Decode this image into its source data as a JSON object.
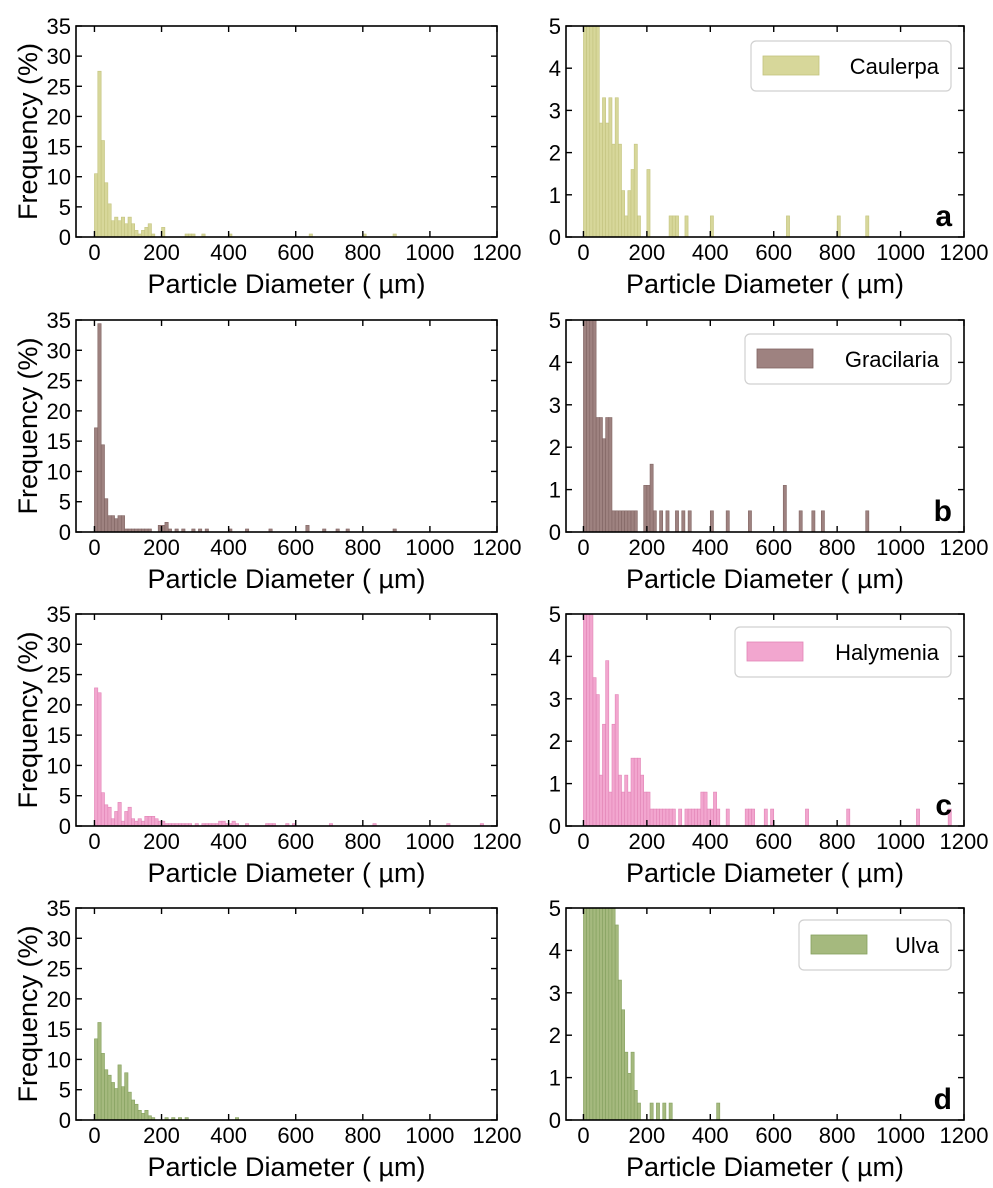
{
  "chart_data": [
    {
      "type": "bar",
      "id": "a-full",
      "row": 0,
      "col": 0,
      "xlabel": "Particle Diameter ( µm)",
      "ylabel": "Frequency (%)",
      "xlim": [
        -55,
        1200
      ],
      "ylim": [
        0,
        35
      ],
      "xticks": [
        0,
        200,
        400,
        600,
        800,
        1000,
        1200
      ],
      "yticks": [
        0,
        5,
        10,
        15,
        20,
        25,
        30,
        35
      ],
      "bin_width": 10,
      "color": "#d7d79a",
      "edge": "#c3c37e",
      "bins": [
        [
          0,
          10.5
        ],
        [
          10,
          27.5
        ],
        [
          20,
          16
        ],
        [
          30,
          9
        ],
        [
          40,
          5.5
        ],
        [
          50,
          2.7
        ],
        [
          60,
          3.3
        ],
        [
          70,
          2.7
        ],
        [
          80,
          3.3
        ],
        [
          90,
          2.2
        ],
        [
          100,
          3.3
        ],
        [
          110,
          2.2
        ],
        [
          120,
          1.1
        ],
        [
          130,
          0.5
        ],
        [
          140,
          1.1
        ],
        [
          150,
          1.6
        ],
        [
          160,
          2.2
        ],
        [
          170,
          0.5
        ],
        [
          200,
          1.6
        ],
        [
          270,
          0.5
        ],
        [
          280,
          0.5
        ],
        [
          290,
          0.5
        ],
        [
          320,
          0.5
        ],
        [
          400,
          0.5
        ],
        [
          640,
          0.5
        ],
        [
          800,
          0.5
        ],
        [
          890,
          0.5
        ]
      ]
    },
    {
      "type": "bar",
      "id": "a-zoom",
      "row": 0,
      "col": 1,
      "xlabel": "Particle Diameter ( µm)",
      "xlim": [
        -55,
        1200
      ],
      "ylim": [
        0,
        5
      ],
      "xticks": [
        0,
        200,
        400,
        600,
        800,
        1000,
        1200
      ],
      "yticks": [
        0,
        1,
        2,
        3,
        4,
        5
      ],
      "bin_width": 10,
      "color": "#d7d79a",
      "edge": "#c3c37e",
      "legend": "Caulerpa",
      "panel_label": "a",
      "bins": [
        [
          0,
          10.5
        ],
        [
          10,
          27.5
        ],
        [
          20,
          16
        ],
        [
          30,
          9
        ],
        [
          40,
          5.5
        ],
        [
          50,
          2.7
        ],
        [
          60,
          3.3
        ],
        [
          70,
          2.7
        ],
        [
          80,
          3.3
        ],
        [
          90,
          2.2
        ],
        [
          100,
          3.3
        ],
        [
          110,
          2.2
        ],
        [
          120,
          1.1
        ],
        [
          130,
          0.5
        ],
        [
          140,
          1.1
        ],
        [
          150,
          1.6
        ],
        [
          160,
          2.2
        ],
        [
          170,
          0.5
        ],
        [
          200,
          1.6
        ],
        [
          270,
          0.5
        ],
        [
          280,
          0.5
        ],
        [
          290,
          0.5
        ],
        [
          320,
          0.5
        ],
        [
          400,
          0.5
        ],
        [
          640,
          0.5
        ],
        [
          800,
          0.5
        ],
        [
          890,
          0.5
        ]
      ]
    },
    {
      "type": "bar",
      "id": "b-full",
      "row": 1,
      "col": 0,
      "xlabel": "Particle Diameter ( µm)",
      "ylabel": "Frequency (%)",
      "xlim": [
        -55,
        1200
      ],
      "ylim": [
        0,
        35
      ],
      "xticks": [
        0,
        200,
        400,
        600,
        800,
        1000,
        1200
      ],
      "yticks": [
        0,
        5,
        10,
        15,
        20,
        25,
        30,
        35
      ],
      "bin_width": 10,
      "color": "#9e8280",
      "edge": "#806462",
      "bins": [
        [
          0,
          17.2
        ],
        [
          10,
          34.4
        ],
        [
          20,
          14.4
        ],
        [
          30,
          5.5
        ],
        [
          40,
          2.7
        ],
        [
          50,
          2.7
        ],
        [
          60,
          2.2
        ],
        [
          70,
          2.7
        ],
        [
          80,
          2.7
        ],
        [
          90,
          0.5
        ],
        [
          100,
          0.5
        ],
        [
          110,
          0.5
        ],
        [
          120,
          0.5
        ],
        [
          130,
          0.5
        ],
        [
          140,
          0.5
        ],
        [
          150,
          0.5
        ],
        [
          160,
          0.5
        ],
        [
          190,
          1.1
        ],
        [
          200,
          1.1
        ],
        [
          210,
          1.6
        ],
        [
          220,
          0.5
        ],
        [
          240,
          0.5
        ],
        [
          260,
          0.5
        ],
        [
          290,
          0.5
        ],
        [
          310,
          0.5
        ],
        [
          330,
          0.5
        ],
        [
          400,
          0.5
        ],
        [
          450,
          0.5
        ],
        [
          520,
          0.5
        ],
        [
          630,
          1.1
        ],
        [
          680,
          0.5
        ],
        [
          720,
          0.5
        ],
        [
          750,
          0.5
        ],
        [
          890,
          0.5
        ]
      ]
    },
    {
      "type": "bar",
      "id": "b-zoom",
      "row": 1,
      "col": 1,
      "xlabel": "Particle Diameter ( µm)",
      "xlim": [
        -55,
        1200
      ],
      "ylim": [
        0,
        5
      ],
      "xticks": [
        0,
        200,
        400,
        600,
        800,
        1000,
        1200
      ],
      "yticks": [
        0,
        1,
        2,
        3,
        4,
        5
      ],
      "bin_width": 10,
      "color": "#9e8280",
      "edge": "#806462",
      "legend": "Gracilaria",
      "panel_label": "b",
      "bins": [
        [
          0,
          17.2
        ],
        [
          10,
          34.4
        ],
        [
          20,
          14.4
        ],
        [
          30,
          5.5
        ],
        [
          40,
          2.7
        ],
        [
          50,
          2.7
        ],
        [
          60,
          2.2
        ],
        [
          70,
          2.7
        ],
        [
          80,
          2.7
        ],
        [
          90,
          0.5
        ],
        [
          100,
          0.5
        ],
        [
          110,
          0.5
        ],
        [
          120,
          0.5
        ],
        [
          130,
          0.5
        ],
        [
          140,
          0.5
        ],
        [
          150,
          0.5
        ],
        [
          160,
          0.5
        ],
        [
          190,
          1.1
        ],
        [
          200,
          1.1
        ],
        [
          210,
          1.6
        ],
        [
          220,
          0.5
        ],
        [
          240,
          0.5
        ],
        [
          260,
          0.5
        ],
        [
          290,
          0.5
        ],
        [
          310,
          0.5
        ],
        [
          330,
          0.5
        ],
        [
          400,
          0.5
        ],
        [
          450,
          0.5
        ],
        [
          520,
          0.5
        ],
        [
          630,
          1.1
        ],
        [
          680,
          0.5
        ],
        [
          720,
          0.5
        ],
        [
          750,
          0.5
        ],
        [
          890,
          0.5
        ]
      ]
    },
    {
      "type": "bar",
      "id": "c-full",
      "row": 2,
      "col": 0,
      "xlabel": "Particle Diameter ( µm)",
      "ylabel": "Frequency (%)",
      "xlim": [
        -55,
        1200
      ],
      "ylim": [
        0,
        35
      ],
      "xticks": [
        0,
        200,
        400,
        600,
        800,
        1000,
        1200
      ],
      "yticks": [
        0,
        5,
        10,
        15,
        20,
        25,
        30,
        35
      ],
      "bin_width": 10,
      "color": "#f2a6cf",
      "edge": "#e284b6",
      "bins": [
        [
          0,
          22.8
        ],
        [
          10,
          22
        ],
        [
          20,
          5.5
        ],
        [
          30,
          3.5
        ],
        [
          40,
          3.1
        ],
        [
          50,
          1.2
        ],
        [
          60,
          2.4
        ],
        [
          70,
          3.9
        ],
        [
          80,
          0.8
        ],
        [
          90,
          2.4
        ],
        [
          100,
          3.1
        ],
        [
          110,
          1.2
        ],
        [
          120,
          0.8
        ],
        [
          130,
          1.2
        ],
        [
          140,
          0.8
        ],
        [
          150,
          1.6
        ],
        [
          160,
          1.6
        ],
        [
          170,
          1.6
        ],
        [
          180,
          1.2
        ],
        [
          190,
          0.8
        ],
        [
          200,
          0.8
        ],
        [
          210,
          0.4
        ],
        [
          220,
          0.4
        ],
        [
          230,
          0.4
        ],
        [
          240,
          0.4
        ],
        [
          250,
          0.4
        ],
        [
          260,
          0.4
        ],
        [
          270,
          0.4
        ],
        [
          280,
          0.4
        ],
        [
          300,
          0.4
        ],
        [
          320,
          0.4
        ],
        [
          330,
          0.4
        ],
        [
          340,
          0.4
        ],
        [
          350,
          0.4
        ],
        [
          360,
          0.4
        ],
        [
          370,
          0.8
        ],
        [
          380,
          0.8
        ],
        [
          390,
          0.4
        ],
        [
          400,
          0.4
        ],
        [
          410,
          0.8
        ],
        [
          420,
          0.4
        ],
        [
          450,
          0.4
        ],
        [
          510,
          0.4
        ],
        [
          520,
          0.4
        ],
        [
          530,
          0.4
        ],
        [
          570,
          0.4
        ],
        [
          590,
          0.4
        ],
        [
          700,
          0.4
        ],
        [
          830,
          0.4
        ],
        [
          1050,
          0.4
        ],
        [
          1150,
          0.4
        ]
      ]
    },
    {
      "type": "bar",
      "id": "c-zoom",
      "row": 2,
      "col": 1,
      "xlabel": "Particle Diameter ( µm)",
      "xlim": [
        -55,
        1200
      ],
      "ylim": [
        0,
        5
      ],
      "xticks": [
        0,
        200,
        400,
        600,
        800,
        1000,
        1200
      ],
      "yticks": [
        0,
        1,
        2,
        3,
        4,
        5
      ],
      "bin_width": 10,
      "color": "#f2a6cf",
      "edge": "#e284b6",
      "legend": "Halymenia",
      "panel_label": "c",
      "bins": [
        [
          0,
          22.8
        ],
        [
          10,
          22
        ],
        [
          20,
          5.5
        ],
        [
          30,
          3.5
        ],
        [
          40,
          3.1
        ],
        [
          50,
          1.2
        ],
        [
          60,
          2.4
        ],
        [
          70,
          3.9
        ],
        [
          80,
          0.8
        ],
        [
          90,
          2.4
        ],
        [
          100,
          3.1
        ],
        [
          110,
          1.2
        ],
        [
          120,
          0.8
        ],
        [
          130,
          1.2
        ],
        [
          140,
          0.8
        ],
        [
          150,
          1.6
        ],
        [
          160,
          1.6
        ],
        [
          170,
          1.6
        ],
        [
          180,
          1.2
        ],
        [
          190,
          0.8
        ],
        [
          200,
          0.8
        ],
        [
          210,
          0.4
        ],
        [
          220,
          0.4
        ],
        [
          230,
          0.4
        ],
        [
          240,
          0.4
        ],
        [
          250,
          0.4
        ],
        [
          260,
          0.4
        ],
        [
          270,
          0.4
        ],
        [
          280,
          0.4
        ],
        [
          300,
          0.4
        ],
        [
          320,
          0.4
        ],
        [
          330,
          0.4
        ],
        [
          340,
          0.4
        ],
        [
          350,
          0.4
        ],
        [
          360,
          0.4
        ],
        [
          370,
          0.8
        ],
        [
          380,
          0.8
        ],
        [
          390,
          0.4
        ],
        [
          400,
          0.4
        ],
        [
          410,
          0.8
        ],
        [
          420,
          0.4
        ],
        [
          450,
          0.4
        ],
        [
          510,
          0.4
        ],
        [
          520,
          0.4
        ],
        [
          530,
          0.4
        ],
        [
          570,
          0.4
        ],
        [
          590,
          0.4
        ],
        [
          700,
          0.4
        ],
        [
          830,
          0.4
        ],
        [
          1050,
          0.4
        ],
        [
          1150,
          0.4
        ]
      ]
    },
    {
      "type": "bar",
      "id": "d-full",
      "row": 3,
      "col": 0,
      "xlabel": "Particle Diameter ( µm)",
      "ylabel": "Frequency (%)",
      "xlim": [
        -55,
        1200
      ],
      "ylim": [
        0,
        35
      ],
      "xticks": [
        0,
        200,
        400,
        600,
        800,
        1000,
        1200
      ],
      "yticks": [
        0,
        5,
        10,
        15,
        20,
        25,
        30,
        35
      ],
      "bin_width": 10,
      "color": "#a5b97e",
      "edge": "#84a05e",
      "bins": [
        [
          0,
          13.4
        ],
        [
          10,
          16.1
        ],
        [
          20,
          11
        ],
        [
          30,
          8.3
        ],
        [
          40,
          7.4
        ],
        [
          50,
          6.2
        ],
        [
          60,
          5.2
        ],
        [
          70,
          9.1
        ],
        [
          80,
          5.5
        ],
        [
          90,
          7.8
        ],
        [
          100,
          4.6
        ],
        [
          110,
          3.3
        ],
        [
          120,
          2.6
        ],
        [
          130,
          1.6
        ],
        [
          140,
          1.1
        ],
        [
          150,
          1.6
        ],
        [
          160,
          0.7
        ],
        [
          170,
          0.4
        ],
        [
          210,
          0.4
        ],
        [
          230,
          0.4
        ],
        [
          250,
          0.4
        ],
        [
          270,
          0.4
        ],
        [
          420,
          0.4
        ]
      ]
    },
    {
      "type": "bar",
      "id": "d-zoom",
      "row": 3,
      "col": 1,
      "xlabel": "Particle Diameter ( µm)",
      "xlim": [
        -55,
        1200
      ],
      "ylim": [
        0,
        5
      ],
      "xticks": [
        0,
        200,
        400,
        600,
        800,
        1000,
        1200
      ],
      "yticks": [
        0,
        1,
        2,
        3,
        4,
        5
      ],
      "bin_width": 10,
      "color": "#a5b97e",
      "edge": "#84a05e",
      "legend": "Ulva",
      "panel_label": "d",
      "bins": [
        [
          0,
          13.4
        ],
        [
          10,
          16.1
        ],
        [
          20,
          11
        ],
        [
          30,
          8.3
        ],
        [
          40,
          7.4
        ],
        [
          50,
          6.2
        ],
        [
          60,
          5.2
        ],
        [
          70,
          9.1
        ],
        [
          80,
          5.5
        ],
        [
          90,
          7.8
        ],
        [
          100,
          4.6
        ],
        [
          110,
          3.3
        ],
        [
          120,
          2.6
        ],
        [
          130,
          1.6
        ],
        [
          140,
          1.1
        ],
        [
          150,
          1.6
        ],
        [
          160,
          0.7
        ],
        [
          170,
          0.4
        ],
        [
          210,
          0.4
        ],
        [
          230,
          0.4
        ],
        [
          250,
          0.4
        ],
        [
          270,
          0.4
        ],
        [
          420,
          0.4
        ]
      ]
    }
  ]
}
